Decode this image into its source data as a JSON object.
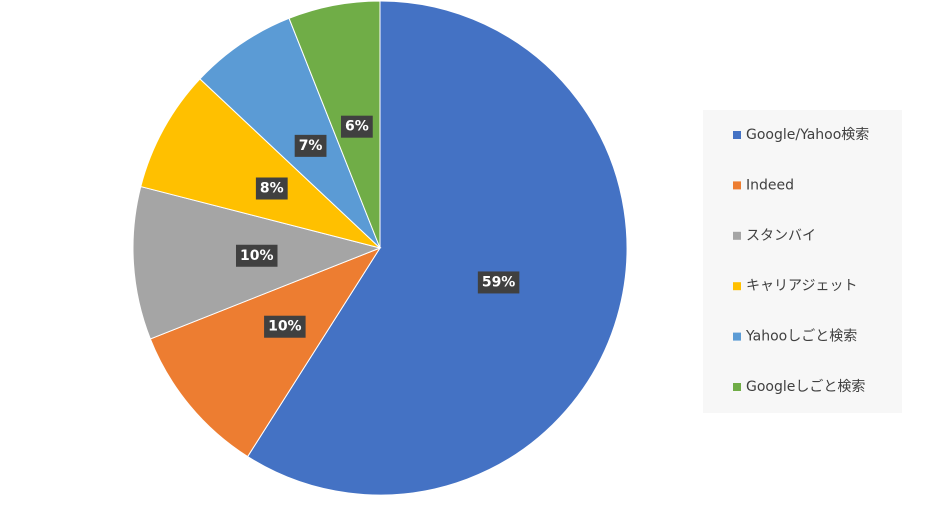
{
  "chart_data": {
    "type": "pie",
    "categories": [
      "Google/Yahoo検索",
      "Indeed",
      "スタンバイ",
      "キャリアジェット",
      "Yahooしごと検索",
      "Googleしごと検索"
    ],
    "values": [
      59,
      10,
      10,
      8,
      7,
      6
    ],
    "value_labels": [
      "59%",
      "10%",
      "10%",
      "8%",
      "7%",
      "6%"
    ],
    "colors": [
      "#4472c4",
      "#ed7d31",
      "#a5a5a5",
      "#ffc000",
      "#5b9bd5",
      "#70ad47"
    ]
  }
}
